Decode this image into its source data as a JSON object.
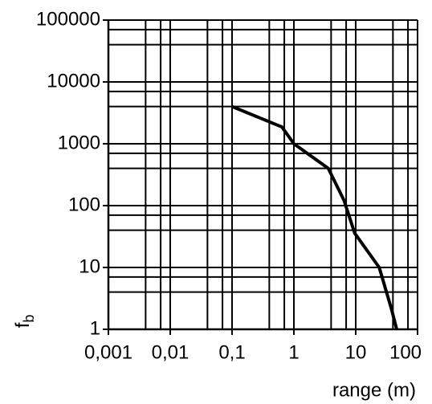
{
  "chart_data": {
    "type": "line",
    "xlabel": "range (m)",
    "ylabel": "f",
    "ylabel_sub": "b",
    "xscale": "log",
    "yscale": "log",
    "grid": true,
    "xlim": [
      0.001,
      100
    ],
    "ylim": [
      1,
      100000
    ],
    "xticks": [
      {
        "value": 0.001,
        "label": "0,001"
      },
      {
        "value": 0.01,
        "label": "0,01"
      },
      {
        "value": 0.1,
        "label": "0,1"
      },
      1,
      10,
      100
    ],
    "yticks": [
      1,
      10,
      100,
      1000,
      10000,
      100000
    ],
    "xminorticks": [
      0.004,
      0.007,
      0.04,
      0.07,
      0.4,
      0.7,
      4,
      7,
      40,
      70
    ],
    "yminorticks": [
      4,
      7,
      40,
      70,
      400,
      700,
      4000,
      7000,
      40000,
      70000
    ],
    "series": [
      {
        "name": "f_b",
        "color": "#000000",
        "x": [
          0.1,
          0.64,
          1,
          3.6,
          6.5,
          9.6,
          24,
          38,
          46
        ],
        "values": [
          4000,
          1870,
          1000,
          400,
          120,
          36,
          10,
          2.1,
          1
        ]
      }
    ]
  }
}
